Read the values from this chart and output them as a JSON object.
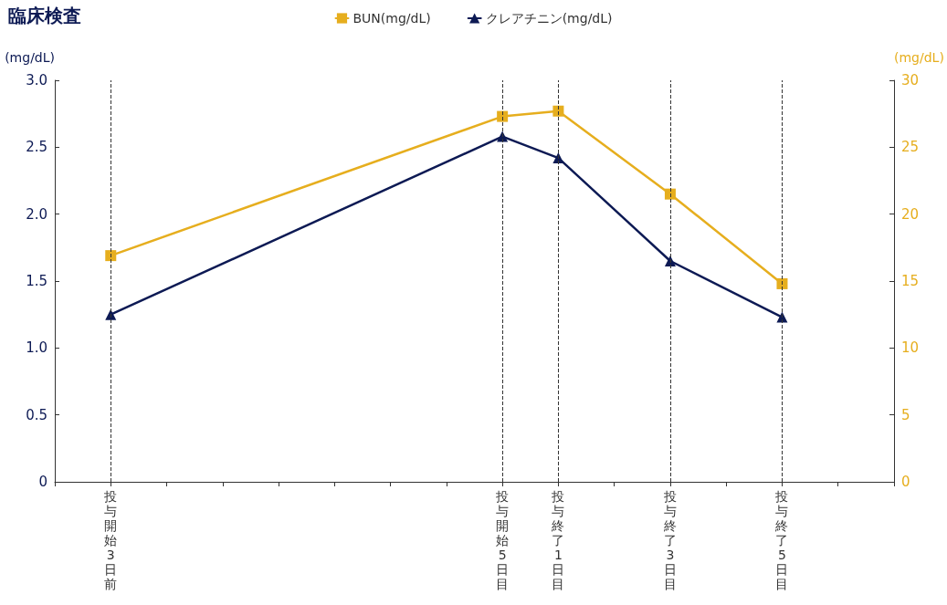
{
  "chart_data": {
    "type": "line",
    "title": "臨床検査",
    "ylabel": "(mg/dL)",
    "y2label": "(mg/dL)",
    "categories": [
      null,
      "投与開始3日前",
      null,
      null,
      null,
      null,
      null,
      null,
      "投与開始5日目",
      "投与終了1日目",
      null,
      "投与終了3日目",
      null,
      "投与終了5日目",
      null,
      null
    ],
    "series": [
      {
        "name": "BUN(mg/dL)",
        "color": "#e6ae1e",
        "axis": "y2",
        "marker": "square",
        "values": [
          null,
          16.9,
          null,
          null,
          null,
          null,
          null,
          null,
          27.3,
          27.7,
          null,
          21.5,
          null,
          14.8,
          null,
          null
        ]
      },
      {
        "name": "クレアチニン(mg/dL)",
        "color": "#0d1a54",
        "marker": "triangle",
        "values": [
          null,
          1.25,
          null,
          null,
          null,
          null,
          null,
          null,
          2.58,
          2.42,
          null,
          1.65,
          null,
          1.23,
          null,
          null
        ]
      }
    ],
    "ylim": [
      0,
      3.0
    ],
    "yticks": [
      {
        "value": 0,
        "label": "0"
      },
      0.5,
      {
        "value": 1,
        "label": "1.0"
      },
      1.5,
      {
        "value": 2,
        "label": "2.0"
      },
      2.5,
      {
        "value": 3,
        "label": "3.0"
      }
    ],
    "y2lim": [
      0,
      30
    ],
    "y2ticks": [
      0,
      5,
      10,
      15,
      20,
      25,
      30
    ],
    "ref_lines": [
      {
        "axis": "x",
        "value": "投与開始3日前",
        "line_style": "dashed",
        "color": "#333333"
      },
      {
        "axis": "x",
        "value": "投与開始5日目",
        "line_style": "dashed",
        "color": "#333333"
      },
      {
        "axis": "x",
        "value": "投与終了1日目",
        "line_style": "dashed",
        "color": "#333333"
      },
      {
        "axis": "x",
        "value": "投与終了3日目",
        "line_style": "dashed",
        "color": "#333333"
      },
      {
        "axis": "x",
        "value": "投与終了5日目",
        "line_style": "dashed",
        "color": "#333333"
      }
    ],
    "grid": false,
    "legend": "top",
    "line_style": "solid"
  }
}
